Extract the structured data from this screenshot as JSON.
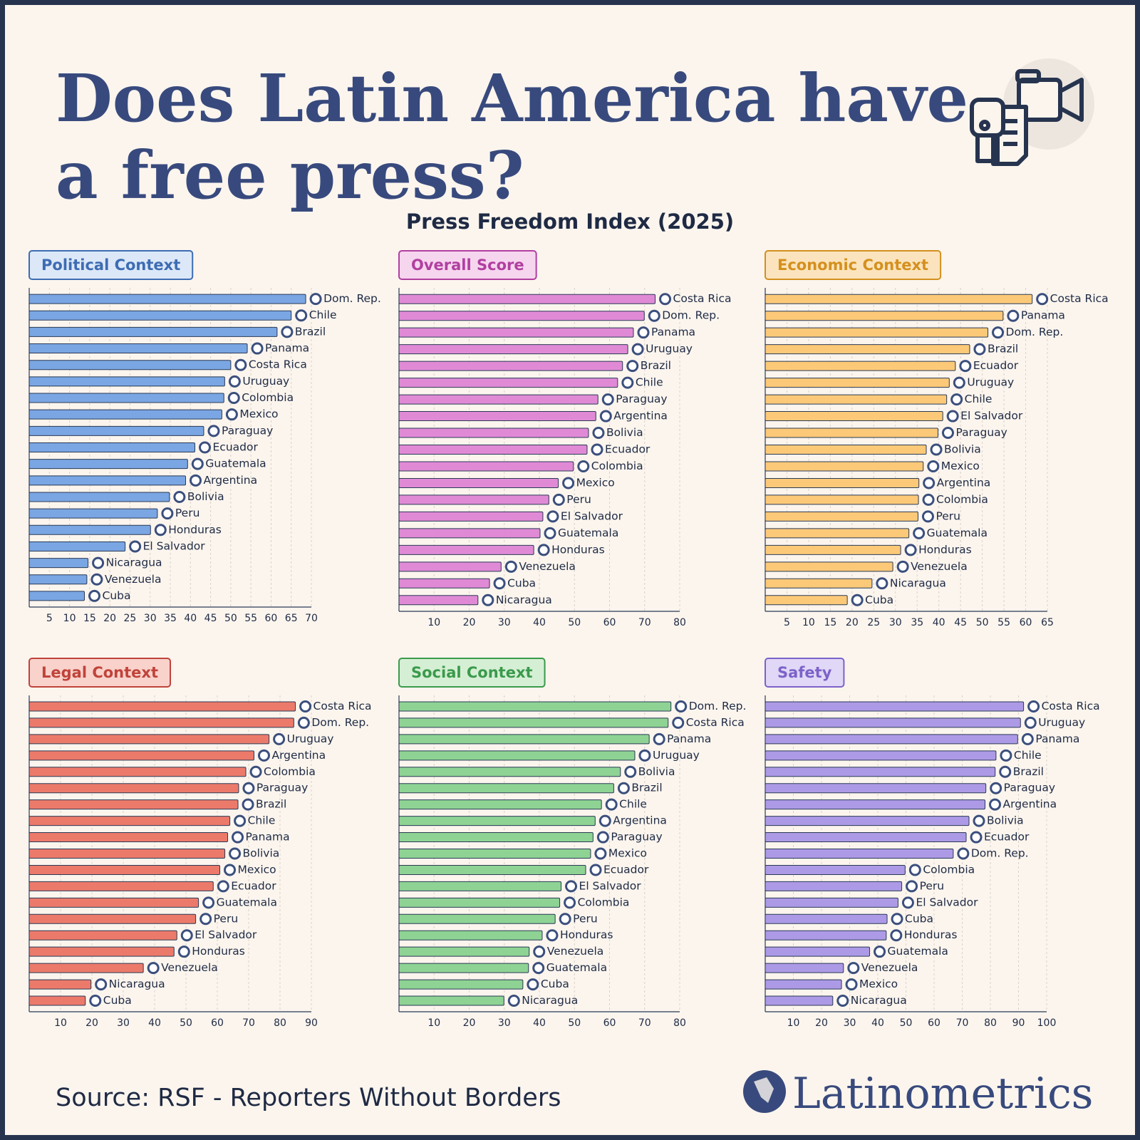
{
  "header": {
    "title_lines": [
      "Does Latin America have",
      "a free press?"
    ],
    "subtitle": "Press Freedom Index (2025)"
  },
  "chart_data": [
    {
      "type": "bar",
      "orientation": "horizontal",
      "title": "Political Context",
      "color": "#7aa6e3",
      "title_color": "#3d6cb3",
      "title_fill": "#dce8f8",
      "categories": [
        "Dom. Rep.",
        "Chile",
        "Brazil",
        "Panama",
        "Costa Rica",
        "Uruguay",
        "Colombia",
        "Mexico",
        "Paraguay",
        "Ecuador",
        "Guatemala",
        "Argentina",
        "Bolivia",
        "Peru",
        "Honduras",
        "El Salvador",
        "Nicaragua",
        "Venezuela",
        "Cuba"
      ],
      "values": [
        68.6,
        65.0,
        61.5,
        54.1,
        50.0,
        48.5,
        48.3,
        47.8,
        43.3,
        41.1,
        39.3,
        38.8,
        34.8,
        31.8,
        30.1,
        23.8,
        14.6,
        14.3,
        13.7
      ],
      "xlim": [
        0,
        70
      ],
      "xticks": [
        5,
        10,
        15,
        20,
        25,
        30,
        35,
        40,
        45,
        50,
        55,
        60,
        65,
        70
      ],
      "grid": true
    },
    {
      "type": "bar",
      "orientation": "horizontal",
      "title": "Overall Score",
      "color": "#e08ad6",
      "title_color": "#b13fa0",
      "title_fill": "#f6d5ef",
      "categories": [
        "Costa Rica",
        "Dom. Rep.",
        "Panama",
        "Uruguay",
        "Brazil",
        "Chile",
        "Paraguay",
        "Argentina",
        "Bolivia",
        "Ecuador",
        "Colombia",
        "Mexico",
        "Peru",
        "El Salvador",
        "Guatemala",
        "Honduras",
        "Venezuela",
        "Cuba",
        "Nicaragua"
      ],
      "values": [
        73.0,
        69.9,
        66.8,
        65.2,
        63.7,
        62.3,
        56.7,
        56.1,
        54.0,
        53.6,
        49.7,
        45.4,
        42.7,
        41.0,
        40.2,
        38.4,
        29.1,
        25.8,
        22.5
      ],
      "xlim": [
        0,
        80
      ],
      "xticks": [
        10,
        20,
        30,
        40,
        50,
        60,
        70,
        80
      ],
      "grid": true
    },
    {
      "type": "bar",
      "orientation": "horizontal",
      "title": "Economic Context",
      "color": "#fcc978",
      "title_color": "#d4901e",
      "title_fill": "#fbe4bd",
      "categories": [
        "Costa Rica",
        "Panama",
        "Dom. Rep.",
        "Brazil",
        "Ecuador",
        "Uruguay",
        "Chile",
        "El Salvador",
        "Paraguay",
        "Bolivia",
        "Mexico",
        "Argentina",
        "Colombia",
        "Peru",
        "Guatemala",
        "Honduras",
        "Venezuela",
        "Nicaragua",
        "Cuba"
      ],
      "values": [
        61.5,
        54.8,
        51.3,
        47.1,
        43.8,
        42.4,
        41.8,
        40.9,
        39.8,
        37.1,
        36.4,
        35.4,
        35.3,
        35.2,
        33.1,
        31.2,
        29.4,
        24.6,
        18.9
      ],
      "xlim": [
        0,
        65
      ],
      "xticks": [
        5,
        10,
        15,
        20,
        25,
        30,
        35,
        40,
        45,
        50,
        55,
        60,
        65
      ],
      "grid": true
    },
    {
      "type": "bar",
      "orientation": "horizontal",
      "title": "Legal Context",
      "color": "#ec7a6b",
      "title_color": "#c0433a",
      "title_fill": "#f8d2cb",
      "categories": [
        "Costa Rica",
        "Dom. Rep.",
        "Uruguay",
        "Argentina",
        "Colombia",
        "Paraguay",
        "Brazil",
        "Chile",
        "Panama",
        "Bolivia",
        "Mexico",
        "Ecuador",
        "Guatemala",
        "Peru",
        "El Salvador",
        "Honduras",
        "Venezuela",
        "Nicaragua",
        "Cuba"
      ],
      "values": [
        84.9,
        84.4,
        76.5,
        71.7,
        69.1,
        66.8,
        66.6,
        64.0,
        63.3,
        62.4,
        60.8,
        58.7,
        54.0,
        53.1,
        47.1,
        46.2,
        36.4,
        19.7,
        17.9
      ],
      "xlim": [
        0,
        90
      ],
      "xticks": [
        10,
        20,
        30,
        40,
        50,
        60,
        70,
        80,
        90
      ],
      "grid": true
    },
    {
      "type": "bar",
      "orientation": "horizontal",
      "title": "Social Context",
      "color": "#8ed394",
      "title_color": "#3b9a4b",
      "title_fill": "#d5efd5",
      "categories": [
        "Dom. Rep.",
        "Costa Rica",
        "Panama",
        "Uruguay",
        "Bolivia",
        "Brazil",
        "Chile",
        "Argentina",
        "Paraguay",
        "Mexico",
        "Ecuador",
        "El Salvador",
        "Colombia",
        "Peru",
        "Honduras",
        "Venezuela",
        "Guatemala",
        "Cuba",
        "Nicaragua"
      ],
      "values": [
        77.5,
        76.7,
        71.3,
        67.2,
        63.1,
        61.2,
        57.7,
        55.9,
        55.3,
        54.6,
        53.2,
        46.2,
        45.8,
        44.5,
        40.8,
        37.1,
        36.9,
        35.3,
        29.9
      ],
      "xlim": [
        0,
        80
      ],
      "xticks": [
        10,
        20,
        30,
        40,
        50,
        60,
        70,
        80
      ],
      "grid": true
    },
    {
      "type": "bar",
      "orientation": "horizontal",
      "title": "Safety",
      "color": "#ad9ae6",
      "title_color": "#7c62c9",
      "title_fill": "#e0d8f6",
      "categories": [
        "Costa Rica",
        "Uruguay",
        "Panama",
        "Chile",
        "Brazil",
        "Paraguay",
        "Argentina",
        "Bolivia",
        "Ecuador",
        "Dom. Rep.",
        "Colombia",
        "Peru",
        "El Salvador",
        "Cuba",
        "Honduras",
        "Guatemala",
        "Venezuela",
        "Mexico",
        "Nicaragua"
      ],
      "values": [
        91.8,
        90.7,
        89.7,
        82.0,
        81.7,
        78.4,
        78.1,
        72.4,
        71.4,
        66.8,
        49.7,
        48.5,
        47.2,
        43.3,
        43.0,
        37.1,
        27.8,
        27.1,
        24.0
      ],
      "xlim": [
        0,
        100
      ],
      "xticks": [
        10,
        20,
        30,
        40,
        50,
        60,
        70,
        80,
        90,
        100
      ],
      "grid": true
    }
  ],
  "footer": {
    "source": "Source: RSF - Reporters Without Borders",
    "brand": "Latinometrics"
  }
}
